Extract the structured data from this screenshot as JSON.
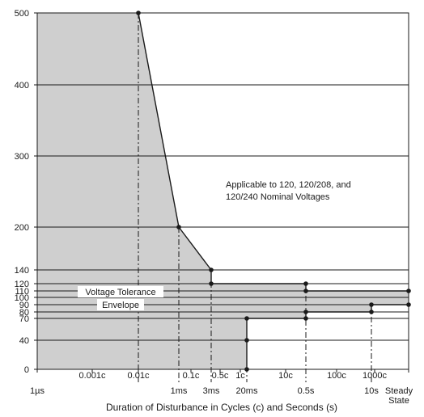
{
  "chart_data": {
    "type": "area",
    "xlabel": "Duration of Disturbance in Cycles (c) and Seconds (s)",
    "ylabel": "",
    "ylim": [
      0,
      500
    ],
    "grid": true,
    "y_ticks": [
      0,
      40,
      70,
      80,
      90,
      100,
      110,
      120,
      140,
      200,
      300,
      400,
      500
    ],
    "x_tick_labels": [
      {
        "key": "1us",
        "text": "1µs",
        "row": "lower"
      },
      {
        "key": "0.001c",
        "text": "0.001c",
        "row": "upper"
      },
      {
        "key": "0.01c",
        "text": "0.01c",
        "row": "upper"
      },
      {
        "key": "1ms",
        "text": "1ms",
        "row": "lower"
      },
      {
        "key": "0.1c",
        "text": "0.1c",
        "row": "upper"
      },
      {
        "key": "3ms",
        "text": "3ms",
        "row": "lower"
      },
      {
        "key": "0.5c",
        "text": "0.5c",
        "row": "upper"
      },
      {
        "key": "1c",
        "text": "1c",
        "row": "upper"
      },
      {
        "key": "20ms",
        "text": "20ms",
        "row": "lower"
      },
      {
        "key": "10c",
        "text": "10c",
        "row": "upper"
      },
      {
        "key": "0.5s",
        "text": "0.5s",
        "row": "lower"
      },
      {
        "key": "100c",
        "text": "100c",
        "row": "upper"
      },
      {
        "key": "10s",
        "text": "10s",
        "row": "lower"
      },
      {
        "key": "1000c",
        "text": "1000c",
        "row": "upper"
      },
      {
        "key": "steady1",
        "text": "Steady",
        "row": "lower"
      },
      {
        "key": "steady2",
        "text": "State",
        "row": "third"
      }
    ],
    "upper_limit": [
      {
        "x": "0.01c",
        "y": 500
      },
      {
        "x": "1ms",
        "y": 200
      },
      {
        "x": "3ms",
        "y": 140
      },
      {
        "x": "3ms",
        "y": 120
      },
      {
        "x": "0.5s",
        "y": 120
      },
      {
        "x": "0.5s",
        "y": 110
      },
      {
        "x": "Steady State",
        "y": 110
      }
    ],
    "lower_limit": [
      {
        "x": "20ms",
        "y": 0
      },
      {
        "x": "20ms",
        "y": 70
      },
      {
        "x": "0.5s",
        "y": 70
      },
      {
        "x": "0.5s",
        "y": 80
      },
      {
        "x": "10s",
        "y": 80
      },
      {
        "x": "10s",
        "y": 90
      },
      {
        "x": "Steady State",
        "y": 90
      }
    ],
    "region_label": [
      "Voltage Tolerance",
      "Envelope"
    ],
    "note": [
      "Applicable to 120, 120/208, and",
      "120/240 Nominal Voltages"
    ],
    "colors": {
      "envelope_fill": "#cfcfcf",
      "line": "#1a1a1a",
      "grid": "#1a1a1a"
    }
  }
}
